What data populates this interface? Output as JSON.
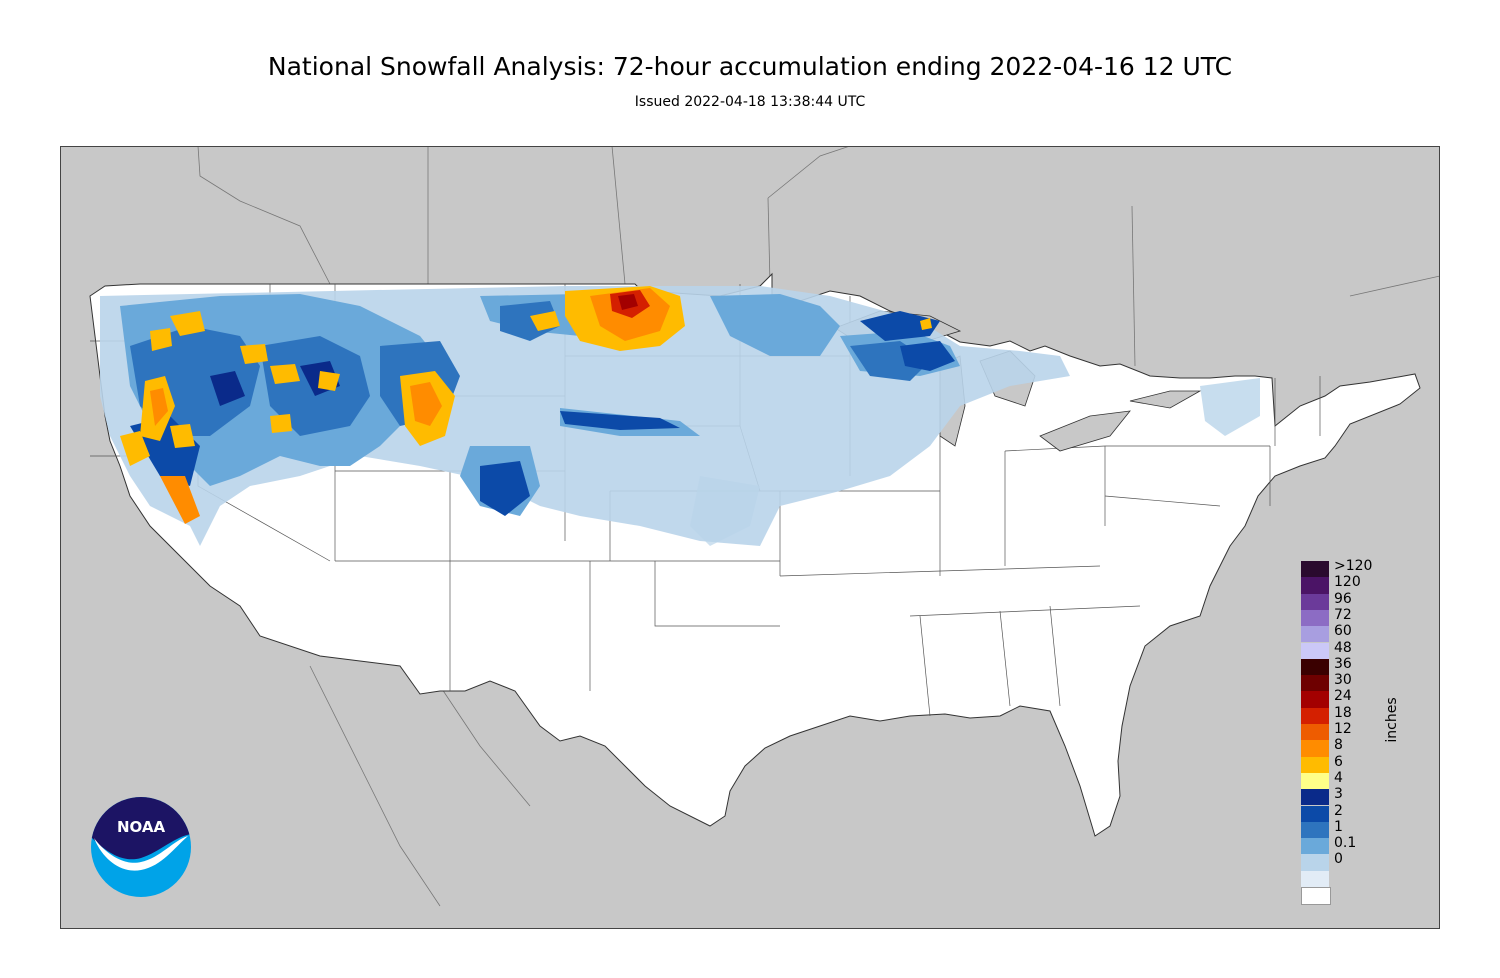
{
  "header": {
    "title": "National Snowfall Analysis: 72-hour accumulation ending 2022-04-16 12 UTC",
    "subtitle": "Issued 2022-04-18 13:38:44 UTC"
  },
  "colors": {
    "ocean": "#c8c8c8",
    "neighbor_land": "#c8c8c8",
    "conus": "#ffffff",
    "boundary": "#555555"
  },
  "legend": {
    "units": "inches",
    "levels": [
      {
        "label": ">120",
        "color": "#2a0a2e"
      },
      {
        "label": "120",
        "color": "#4b1466"
      },
      {
        "label": "96",
        "color": "#6b3a9a"
      },
      {
        "label": "72",
        "color": "#8c6cc4"
      },
      {
        "label": "60",
        "color": "#a89ee0"
      },
      {
        "label": "48",
        "color": "#cbc8f7"
      },
      {
        "label": "36",
        "color": "#3a0000"
      },
      {
        "label": "30",
        "color": "#6e0000"
      },
      {
        "label": "24",
        "color": "#a30000"
      },
      {
        "label": "18",
        "color": "#d42000"
      },
      {
        "label": "12",
        "color": "#ee5c00"
      },
      {
        "label": "8",
        "color": "#ff8c00"
      },
      {
        "label": "6",
        "color": "#ffbb00"
      },
      {
        "label": "4",
        "color": "#ffff88"
      },
      {
        "label": "3",
        "color": "#0a2a8a"
      },
      {
        "label": "2",
        "color": "#0c4aa8"
      },
      {
        "label": "1",
        "color": "#2e74be"
      },
      {
        "label": "0.1",
        "color": "#6aa9da"
      },
      {
        "label": "0",
        "color": "#b9d4ea"
      },
      {
        "label": "",
        "color": "#e2ecf6"
      },
      {
        "label": "",
        "color": "#ffffff"
      }
    ]
  },
  "logo": {
    "text": "NOAA",
    "colors": {
      "top": "#1c1464",
      "bottom": "#00a3e8"
    }
  }
}
